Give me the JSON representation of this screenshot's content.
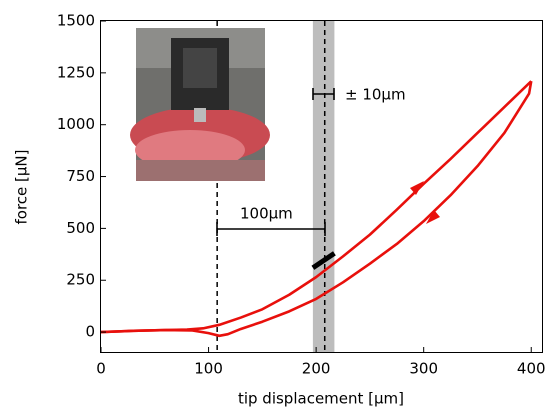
{
  "chart_data": {
    "type": "line",
    "xlabel": "tip displacement [µm]",
    "ylabel": "force [µN]",
    "xlim": [
      0,
      410
    ],
    "ylim": [
      -96,
      1500
    ],
    "xticks": [
      0,
      100,
      200,
      300,
      400
    ],
    "yticks": [
      0,
      250,
      500,
      750,
      1000,
      1250,
      1500
    ],
    "grid": false,
    "vlines": [
      108,
      208
    ],
    "band": [
      197,
      217
    ],
    "annotations": [
      "± 10µm",
      "100µm"
    ],
    "series": [
      {
        "color": "#e8100c",
        "x": [
          0,
          30,
          60,
          80,
          95,
          110,
          130,
          150,
          175,
          200,
          225,
          250,
          275,
          300,
          325,
          350,
          375,
          400
        ],
        "values": [
          0,
          6,
          10,
          12,
          18,
          35,
          70,
          110,
          180,
          265,
          365,
          470,
          590,
          715,
          835,
          960,
          1085,
          1210
        ]
      },
      {
        "color": "#e8100c",
        "x": [
          400,
          398,
          375,
          350,
          325,
          300,
          275,
          250,
          225,
          200,
          175,
          150,
          130,
          118,
          110,
          100,
          85,
          60,
          30,
          0
        ],
        "values": [
          1210,
          1150,
          960,
          800,
          660,
          535,
          425,
          330,
          240,
          160,
          100,
          50,
          15,
          -10,
          -18,
          -5,
          8,
          10,
          6,
          0
        ]
      },
      {
        "color": "#000000",
        "x": [
          197,
          217
        ],
        "values": [
          310,
          380
        ]
      }
    ]
  }
}
